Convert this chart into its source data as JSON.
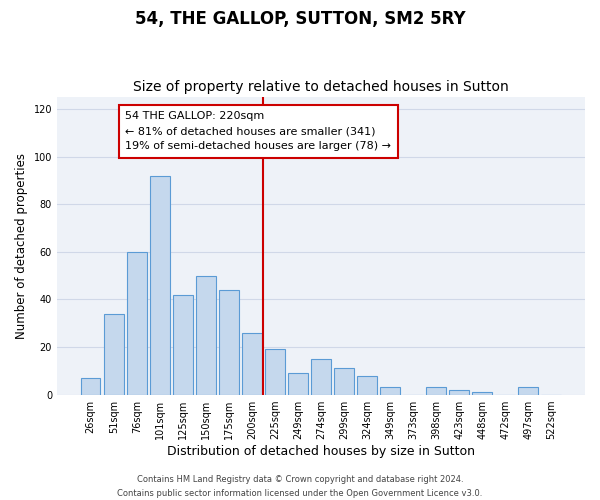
{
  "title": "54, THE GALLOP, SUTTON, SM2 5RY",
  "subtitle": "Size of property relative to detached houses in Sutton",
  "xlabel": "Distribution of detached houses by size in Sutton",
  "ylabel": "Number of detached properties",
  "bar_labels": [
    "26sqm",
    "51sqm",
    "76sqm",
    "101sqm",
    "125sqm",
    "150sqm",
    "175sqm",
    "200sqm",
    "225sqm",
    "249sqm",
    "274sqm",
    "299sqm",
    "324sqm",
    "349sqm",
    "373sqm",
    "398sqm",
    "423sqm",
    "448sqm",
    "472sqm",
    "497sqm",
    "522sqm"
  ],
  "bar_values": [
    7,
    34,
    60,
    92,
    42,
    50,
    44,
    26,
    19,
    9,
    15,
    11,
    8,
    3,
    0,
    3,
    2,
    1,
    0,
    3,
    0
  ],
  "bar_color": "#c5d8ed",
  "bar_edge_color": "#5b9bd5",
  "vline_x_index": 8,
  "vline_color": "#cc0000",
  "annotation_line1": "54 THE GALLOP: 220sqm",
  "annotation_line2": "← 81% of detached houses are smaller (341)",
  "annotation_line3": "19% of semi-detached houses are larger (78) →",
  "annotation_box_color": "#cc0000",
  "ylim": [
    0,
    125
  ],
  "yticks": [
    0,
    20,
    40,
    60,
    80,
    100,
    120
  ],
  "grid_color": "#d0d8e8",
  "bg_color": "#eef2f8",
  "footer_line1": "Contains HM Land Registry data © Crown copyright and database right 2024.",
  "footer_line2": "Contains public sector information licensed under the Open Government Licence v3.0.",
  "title_fontsize": 12,
  "subtitle_fontsize": 10,
  "xlabel_fontsize": 9,
  "ylabel_fontsize": 8.5,
  "tick_fontsize": 7,
  "footer_fontsize": 6,
  "annot_fontsize": 8
}
